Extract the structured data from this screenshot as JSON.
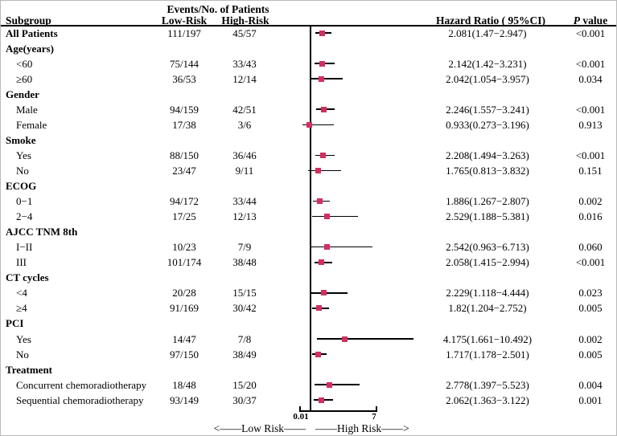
{
  "header": {
    "events_title": "Events/No. of Patients",
    "subgroup": "Subgroup",
    "low_risk": "Low-Risk",
    "high_risk": "High-Risk",
    "hazard_ratio": "Hazard Ratio ( 95%CI)",
    "p_italic": "P",
    "p_rest": " value"
  },
  "axis": {
    "tick_left": "0.01",
    "tick_right": "7",
    "arrow_left": "<——Low Risk——",
    "arrow_right": "——High Risk——>"
  },
  "colors": {
    "marker": "#d22f60",
    "line": "#000000"
  },
  "chart_data": {
    "type": "forest",
    "scale": "linear",
    "x_min": 0.01,
    "x_max": 7,
    "ref_line": 1,
    "columns": [
      "Subgroup",
      "Low-Risk",
      "High-Risk",
      "Hazard Ratio ( 95%CI)",
      "P value"
    ],
    "rows": [
      {
        "label": "All Patients",
        "group": false,
        "bold": true,
        "indent": false,
        "low": "111/197",
        "high": "45/57",
        "hr_text": "2.081(1.47−2.947)",
        "p": "<0.001",
        "hr": 2.081,
        "lo": 1.47,
        "hi": 2.947
      },
      {
        "label": "Age(years)",
        "group": true,
        "bold": true,
        "indent": false
      },
      {
        "label": "<60",
        "group": false,
        "bold": false,
        "indent": true,
        "low": "75/144",
        "high": "33/43",
        "hr_text": "2.142(1.42−3.231)",
        "p": "<0.001",
        "hr": 2.142,
        "lo": 1.42,
        "hi": 3.231
      },
      {
        "label": "≥60",
        "group": false,
        "bold": false,
        "indent": true,
        "low": "36/53",
        "high": "12/14",
        "hr_text": "2.042(1.054−3.957)",
        "p": "0.034",
        "hr": 2.042,
        "lo": 1.054,
        "hi": 3.957
      },
      {
        "label": "Gender",
        "group": true,
        "bold": true,
        "indent": false
      },
      {
        "label": "Male",
        "group": false,
        "bold": false,
        "indent": true,
        "low": "94/159",
        "high": "42/51",
        "hr_text": "2.246(1.557−3.241)",
        "p": "<0.001",
        "hr": 2.246,
        "lo": 1.557,
        "hi": 3.241
      },
      {
        "label": "Female",
        "group": false,
        "bold": false,
        "indent": true,
        "low": "17/38",
        "high": "3/6",
        "hr_text": "0.933(0.273−3.196)",
        "p": "0.913",
        "hr": 0.933,
        "lo": 0.273,
        "hi": 3.196
      },
      {
        "label": "Smoke",
        "group": true,
        "bold": true,
        "indent": false
      },
      {
        "label": "Yes",
        "group": false,
        "bold": false,
        "indent": true,
        "low": "88/150",
        "high": "36/46",
        "hr_text": "2.208(1.494−3.263)",
        "p": "<0.001",
        "hr": 2.208,
        "lo": 1.494,
        "hi": 3.263
      },
      {
        "label": "No",
        "group": false,
        "bold": false,
        "indent": true,
        "low": "23/47",
        "high": "9/11",
        "hr_text": "1.765(0.813−3.832)",
        "p": "0.151",
        "hr": 1.765,
        "lo": 0.813,
        "hi": 3.832
      },
      {
        "label": "ECOG",
        "group": true,
        "bold": true,
        "indent": false
      },
      {
        "label": "0−1",
        "group": false,
        "bold": false,
        "indent": true,
        "low": "94/172",
        "high": "33/44",
        "hr_text": "1.886(1.267−2.807)",
        "p": "0.002",
        "hr": 1.886,
        "lo": 1.267,
        "hi": 2.807
      },
      {
        "label": "2−4",
        "group": false,
        "bold": false,
        "indent": true,
        "low": "17/25",
        "high": "12/13",
        "hr_text": "2.529(1.188−5.381)",
        "p": "0.016",
        "hr": 2.529,
        "lo": 1.188,
        "hi": 5.381
      },
      {
        "label": "AJCC TNM 8th",
        "group": true,
        "bold": true,
        "indent": false
      },
      {
        "label": "I−II",
        "group": false,
        "bold": false,
        "indent": true,
        "low": "10/23",
        "high": "7/9",
        "hr_text": "2.542(0.963−6.713)",
        "p": "0.060",
        "hr": 2.542,
        "lo": 0.963,
        "hi": 6.713
      },
      {
        "label": "III",
        "group": false,
        "bold": false,
        "indent": true,
        "low": "101/174",
        "high": "38/48",
        "hr_text": "2.058(1.415−2.994)",
        "p": "<0.001",
        "hr": 2.058,
        "lo": 1.415,
        "hi": 2.994
      },
      {
        "label": "CT cycles",
        "group": true,
        "bold": true,
        "indent": false
      },
      {
        "label": "<4",
        "group": false,
        "bold": false,
        "indent": true,
        "low": "20/28",
        "high": "15/15",
        "hr_text": "2.229(1.118−4.444)",
        "p": "0.023",
        "hr": 2.229,
        "lo": 1.118,
        "hi": 4.444
      },
      {
        "label": "≥4",
        "group": false,
        "bold": false,
        "indent": true,
        "low": "91/169",
        "high": "30/42",
        "hr_text": "1.82(1.204−2.752)",
        "p": "0.005",
        "hr": 1.82,
        "lo": 1.204,
        "hi": 2.752
      },
      {
        "label": "PCI",
        "group": true,
        "bold": true,
        "indent": false
      },
      {
        "label": "Yes",
        "group": false,
        "bold": false,
        "indent": true,
        "low": "14/47",
        "high": "7/8",
        "hr_text": "4.175(1.661−10.492)",
        "p": "0.002",
        "hr": 4.175,
        "lo": 1.661,
        "hi": 10.492
      },
      {
        "label": "No",
        "group": false,
        "bold": false,
        "indent": true,
        "low": "97/150",
        "high": "38/49",
        "hr_text": "1.717(1.178−2.501)",
        "p": "0.005",
        "hr": 1.717,
        "lo": 1.178,
        "hi": 2.501
      },
      {
        "label": "Treatment",
        "group": true,
        "bold": true,
        "indent": false
      },
      {
        "label": "Concurrent chemoradiotherapy",
        "group": false,
        "bold": false,
        "indent": true,
        "low": "18/48",
        "high": "15/20",
        "hr_text": "2.778(1.397−5.523)",
        "p": "0.004",
        "hr": 2.778,
        "lo": 1.397,
        "hi": 5.523
      },
      {
        "label": "Sequential chemoradiotherapy",
        "group": false,
        "bold": false,
        "indent": true,
        "low": "93/149",
        "high": "30/37",
        "hr_text": "2.062(1.363−3.122)",
        "p": "0.001",
        "hr": 2.062,
        "lo": 1.363,
        "hi": 3.122
      }
    ]
  }
}
